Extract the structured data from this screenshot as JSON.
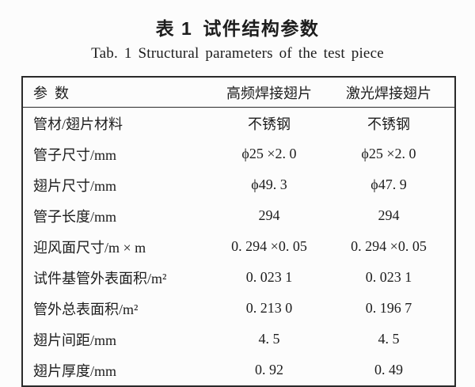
{
  "titles": {
    "zh": "表 1 试件结构参数",
    "en": "Tab. 1 Structural parameters of the test piece"
  },
  "table": {
    "headers": [
      "参 数",
      "高频焊接翅片",
      "激光焊接翅片"
    ],
    "rows": [
      [
        "管材/翅片材料",
        "不锈钢",
        "不锈钢"
      ],
      [
        "管子尺寸/mm",
        "ϕ25 ×2. 0",
        "ϕ25 ×2. 0"
      ],
      [
        "翅片尺寸/mm",
        "ϕ49. 3",
        "ϕ47. 9"
      ],
      [
        "管子长度/mm",
        "294",
        "294"
      ],
      [
        "迎风面尺寸/m × m",
        "0. 294 ×0. 05",
        "0. 294 ×0. 05"
      ],
      [
        "试件基管外表面积/m²",
        "0. 023 1",
        "0. 023 1"
      ],
      [
        "管外总表面积/m²",
        "0. 213 0",
        "0. 196 7"
      ],
      [
        "翅片间距/mm",
        "4. 5",
        "4. 5"
      ],
      [
        "翅片厚度/mm",
        "0. 92",
        "0. 49"
      ]
    ]
  }
}
